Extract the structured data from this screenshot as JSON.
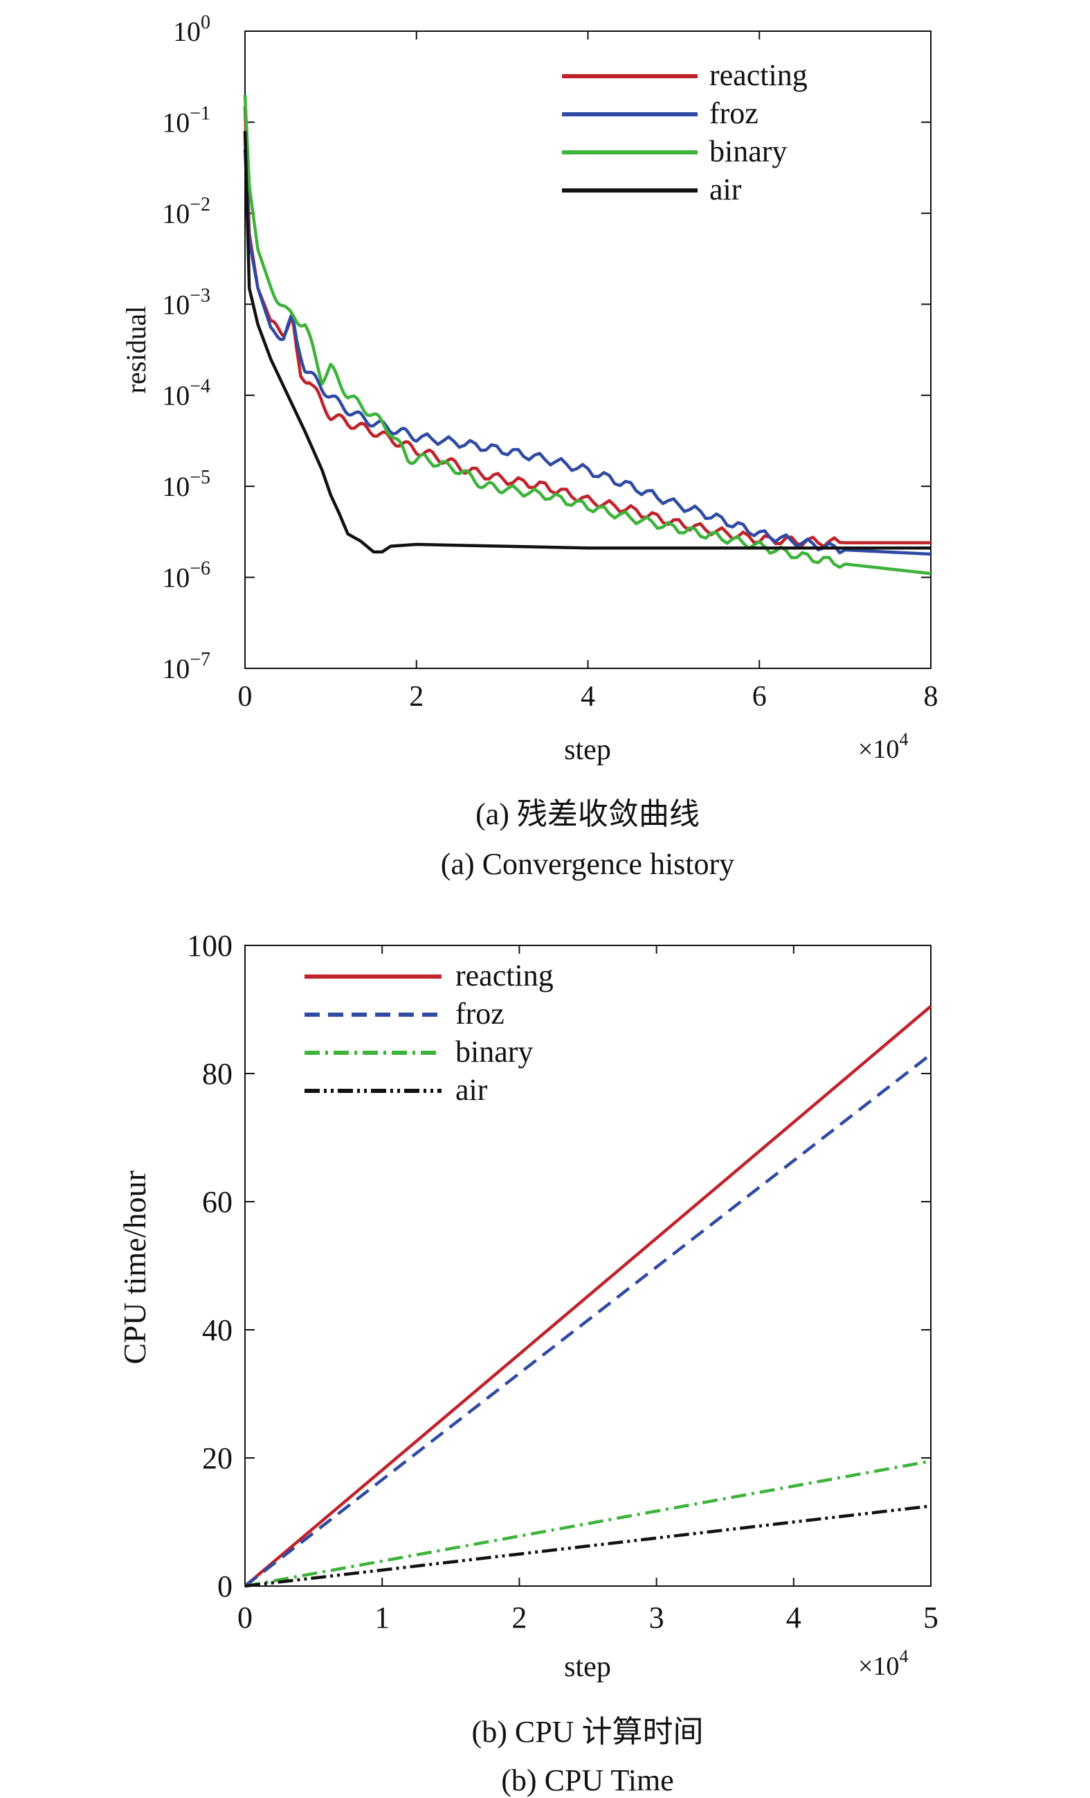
{
  "chart_data": [
    {
      "type": "line",
      "ylog": true,
      "xlabel": "step",
      "ylabel": "residual",
      "x_multiplier": "×10",
      "x_multiplier_exp": "4",
      "xlim": [
        0,
        8
      ],
      "ylim": [
        1e-07,
        1
      ],
      "xticks": [
        "0",
        "2",
        "4",
        "6",
        "8"
      ],
      "yticks": [
        {
          "value": 1,
          "base": "10",
          "exp": "0"
        },
        {
          "value": 0.1,
          "base": "10",
          "exp": "−1"
        },
        {
          "value": 0.01,
          "base": "10",
          "exp": "−2"
        },
        {
          "value": 0.001,
          "base": "10",
          "exp": "−3"
        },
        {
          "value": 0.0001,
          "base": "10",
          "exp": "−4"
        },
        {
          "value": 1e-05,
          "base": "10",
          "exp": "−5"
        },
        {
          "value": 1e-06,
          "base": "10",
          "exp": "−6"
        },
        {
          "value": 1e-07,
          "base": "10",
          "exp": "−7"
        }
      ],
      "caption_cn": "(a) 残差收敛曲线",
      "caption_en": "(a) Convergence history",
      "legend_position": "top-right",
      "series": [
        {
          "name": "reacting",
          "color": "#c0222a",
          "dash": "solid",
          "x": [
            0,
            0.05,
            0.15,
            0.3,
            0.45,
            0.55,
            0.6,
            0.65,
            0.75,
            0.9,
            1.0,
            1.2,
            1.5,
            1.8,
            2.0,
            2.3,
            2.6,
            3.0,
            3.5,
            4.0,
            4.5,
            5.0,
            5.5,
            6.0,
            6.5,
            7.0,
            8.0
          ],
          "y": [
            0.15,
            0.006,
            0.0015,
            0.0006,
            0.0005,
            0.0007,
            0.0003,
            0.00016,
            0.00015,
            8e-05,
            6e-05,
            5e-05,
            4e-05,
            3e-05,
            2.5e-05,
            2e-05,
            1.5e-05,
            1.2e-05,
            1e-05,
            7e-06,
            5.5e-06,
            4e-06,
            3.2e-06,
            2.6e-06,
            2.5e-06,
            2.4e-06,
            2.4e-06
          ]
        },
        {
          "name": "froz",
          "color": "#2f4aa3",
          "dash": "solid",
          "x": [
            0,
            0.05,
            0.15,
            0.3,
            0.45,
            0.55,
            0.6,
            0.7,
            0.9,
            1.1,
            1.3,
            1.5,
            1.8,
            2.0,
            2.5,
            3.0,
            3.5,
            4.0,
            4.5,
            5.0,
            5.5,
            6.0,
            6.5,
            7.0,
            8.0
          ],
          "y": [
            0.05,
            0.005,
            0.0015,
            0.0005,
            0.00045,
            0.0007,
            0.0004,
            0.0002,
            0.00012,
            8e-05,
            6e-05,
            5e-05,
            4e-05,
            3.5e-05,
            3e-05,
            2.5e-05,
            2e-05,
            1.5e-05,
            1e-05,
            6.5e-06,
            4.5e-06,
            3e-06,
            2.4e-06,
            2e-06,
            1.8e-06
          ]
        },
        {
          "name": "binary",
          "color": "#3db33a",
          "dash": "solid",
          "x": [
            0,
            0.05,
            0.15,
            0.3,
            0.5,
            0.7,
            0.8,
            0.9,
            1.0,
            1.2,
            1.5,
            1.7,
            1.9,
            2.1,
            2.5,
            2.8,
            3.0,
            3.5,
            4.0,
            4.5,
            5.0,
            5.5,
            6.0,
            6.5,
            7.0,
            8.0
          ],
          "y": [
            0.2,
            0.02,
            0.004,
            0.0015,
            0.0008,
            0.0006,
            0.0003,
            0.00015,
            0.0002,
            0.0001,
            6e-05,
            4e-05,
            2e-05,
            2e-05,
            1.5e-05,
            1e-05,
            9.5e-06,
            8e-06,
            6e-06,
            4.5e-06,
            3.5e-06,
            2.8e-06,
            2.2e-06,
            1.7e-06,
            1.4e-06,
            1.1e-06
          ]
        },
        {
          "name": "air",
          "color": "#111111",
          "dash": "solid",
          "x": [
            0,
            0.05,
            0.15,
            0.3,
            0.5,
            0.7,
            0.9,
            1.0,
            1.1,
            1.2,
            1.35,
            1.5,
            1.6,
            1.7,
            2.0,
            3.0,
            4.0,
            5.0,
            6.0,
            7.0,
            8.0
          ],
          "y": [
            0.08,
            0.0015,
            0.0006,
            0.00025,
            0.0001,
            4e-05,
            1.5e-05,
            8e-06,
            5e-06,
            3e-06,
            2.5e-06,
            1.9e-06,
            1.9e-06,
            2.2e-06,
            2.3e-06,
            2.2e-06,
            2.1e-06,
            2.1e-06,
            2.1e-06,
            2.1e-06,
            2.1e-06
          ]
        }
      ]
    },
    {
      "type": "line",
      "xlabel": "step",
      "ylabel": "CPU time/hour",
      "x_multiplier": "×10",
      "x_multiplier_exp": "4",
      "xlim": [
        0,
        5
      ],
      "ylim": [
        0,
        100
      ],
      "xticks": [
        "0",
        "1",
        "2",
        "3",
        "4",
        "5"
      ],
      "yticks": [
        "0",
        "20",
        "40",
        "60",
        "80",
        "100"
      ],
      "caption_cn": "(b) CPU 计算时间",
      "caption_en": "(b) CPU Time",
      "legend_position": "top-left",
      "series": [
        {
          "name": "reacting",
          "color": "#c0222a",
          "dash": "solid",
          "x": [
            0,
            5
          ],
          "y": [
            0,
            90.5
          ]
        },
        {
          "name": "froz",
          "color": "#2f4aa3",
          "dash": "dashed",
          "x": [
            0,
            5
          ],
          "y": [
            0,
            83
          ]
        },
        {
          "name": "binary",
          "color": "#3db33a",
          "dash": "dashdot",
          "x": [
            0,
            5
          ],
          "y": [
            0,
            19.5
          ]
        },
        {
          "name": "air",
          "color": "#111111",
          "dash": "dashdotdot",
          "x": [
            0,
            5
          ],
          "y": [
            0,
            12.5
          ]
        }
      ]
    }
  ]
}
